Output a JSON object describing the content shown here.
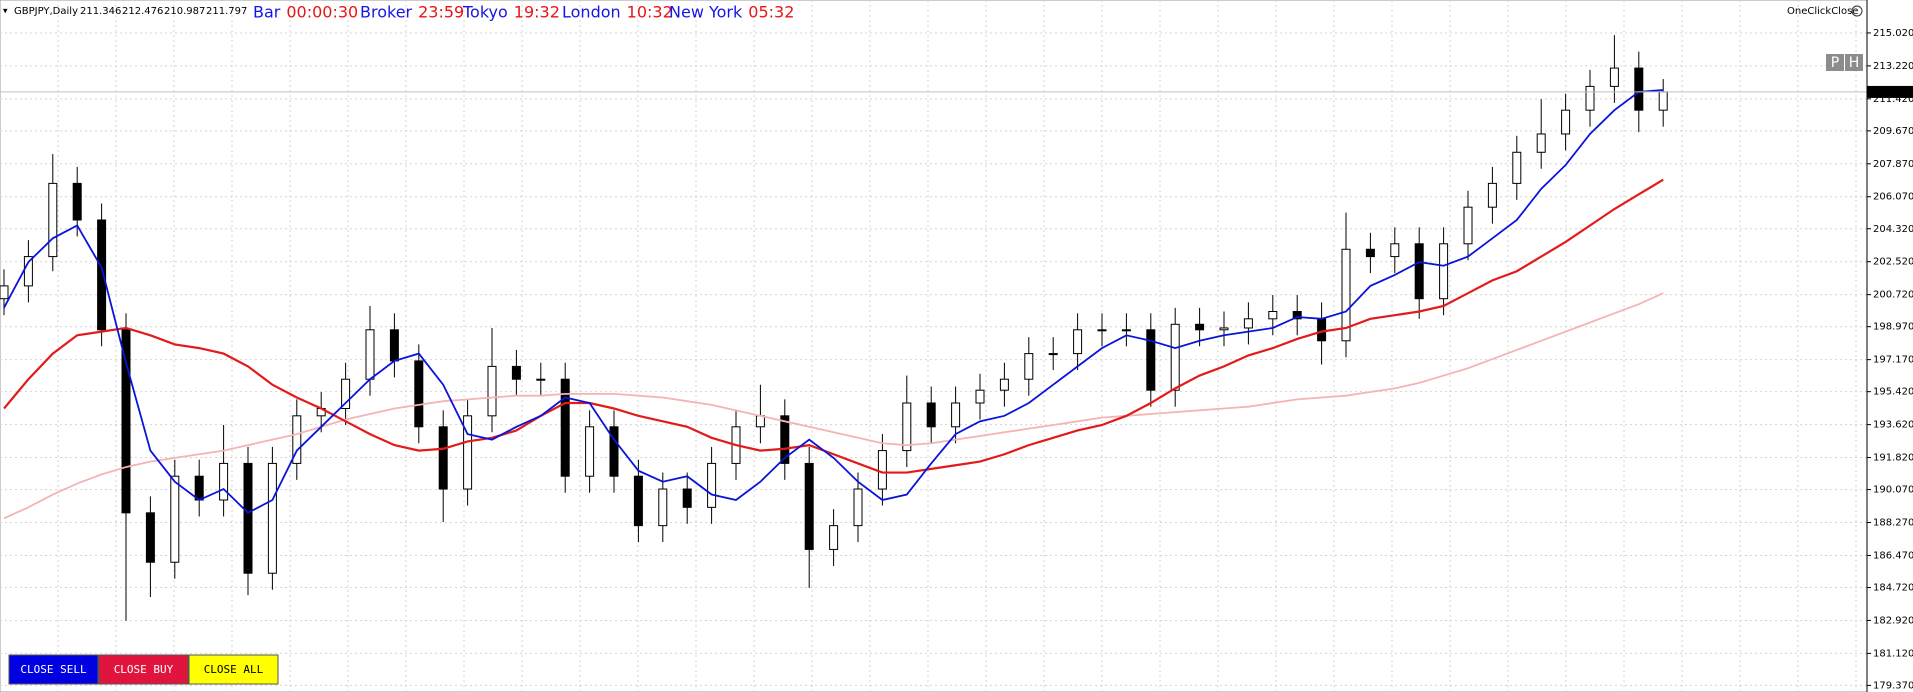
{
  "header": {
    "symbol": "GBPJPY,Daily",
    "ohlc": [
      211.346,
      212.476,
      210.987,
      211.797
    ]
  },
  "clocks": [
    {
      "label": "Bar",
      "time": "00:00:30"
    },
    {
      "label": "Broker",
      "time": "23:59"
    },
    {
      "label": "Tokyo",
      "time": "19:32"
    },
    {
      "label": "London",
      "time": "10:32"
    },
    {
      "label": "New York",
      "time": "05:32"
    }
  ],
  "panel": {
    "title": "OneClickClose",
    "buttons": [
      "P",
      "H"
    ]
  },
  "actions": [
    "CLOSE SELL",
    "CLOSE BUY",
    "CLOSE ALL"
  ],
  "chart_data": {
    "type": "candlestick",
    "ylim": [
      179.01,
      216.82
    ],
    "yticks": [
      {
        "value": 215.02,
        "label": "215.020"
      },
      {
        "value": 213.22,
        "label": "213.220"
      },
      {
        "value": 211.42,
        "label": "211.420"
      },
      {
        "value": 209.67,
        "label": "209.670"
      },
      {
        "value": 207.87,
        "label": "207.870"
      },
      {
        "value": 206.07,
        "label": "206.070"
      },
      {
        "value": 204.32,
        "label": "204.320"
      },
      {
        "value": 202.52,
        "label": "202.520"
      },
      {
        "value": 200.72,
        "label": "200.720"
      },
      {
        "value": 198.97,
        "label": "198.970"
      },
      {
        "value": 197.17,
        "label": "197.170"
      },
      {
        "value": 195.42,
        "label": "195.420"
      },
      {
        "value": 193.62,
        "label": "193.620"
      },
      {
        "value": 191.82,
        "label": "191.820"
      },
      {
        "value": 190.07,
        "label": "190.070"
      },
      {
        "value": 188.27,
        "label": "188.270"
      },
      {
        "value": 186.47,
        "label": "186.470"
      },
      {
        "value": 184.72,
        "label": "184.720"
      },
      {
        "value": 182.92,
        "label": "182.920"
      },
      {
        "value": 181.12,
        "label": "181.120"
      },
      {
        "value": 179.37,
        "label": "179.370"
      }
    ],
    "grid": true,
    "current_price": 211.797,
    "candles": {
      "open": [
        200.5,
        201.2,
        202.8,
        206.8,
        204.8,
        198.8,
        188.8,
        186.1,
        190.8,
        189.5,
        191.5,
        185.5,
        191.5,
        194.1,
        194.5,
        196.1,
        198.8,
        197.1,
        193.5,
        190.1,
        194.1,
        196.8,
        196.1,
        196.1,
        190.8,
        193.5,
        190.8,
        188.1,
        190.1,
        189.1,
        191.5,
        193.5,
        194.1,
        191.5,
        186.8,
        188.1,
        190.1,
        192.2,
        194.8,
        193.5,
        194.8,
        195.5,
        196.1,
        197.5,
        197.5,
        198.8,
        198.8,
        198.8,
        195.5,
        199.1,
        198.8,
        198.9,
        199.4,
        199.8,
        199.4,
        198.2,
        203.2,
        202.8,
        203.5,
        200.5,
        203.5,
        205.5,
        206.8,
        208.5,
        209.5,
        210.8,
        212.1,
        213.1,
        210.8
      ],
      "high": [
        202.1,
        203.7,
        208.4,
        207.7,
        205.7,
        199.7,
        189.7,
        191.7,
        191.7,
        193.6,
        192.4,
        192.4,
        195.0,
        195.4,
        197.0,
        200.1,
        199.7,
        198.0,
        194.4,
        195.0,
        198.9,
        197.7,
        197.0,
        197.0,
        194.4,
        194.4,
        191.7,
        191.0,
        191.0,
        192.4,
        194.4,
        195.8,
        195.0,
        192.4,
        189.0,
        191.0,
        193.1,
        196.3,
        195.7,
        195.7,
        196.4,
        197.0,
        198.4,
        198.4,
        199.7,
        199.7,
        199.7,
        199.7,
        200.0,
        200.0,
        199.8,
        200.3,
        200.7,
        200.7,
        200.3,
        205.2,
        204.1,
        204.4,
        204.4,
        204.4,
        206.4,
        207.7,
        209.4,
        211.4,
        211.7,
        213.0,
        214.9,
        214.0,
        212.5
      ],
      "low": [
        199.6,
        200.3,
        202.0,
        203.9,
        197.9,
        182.9,
        184.2,
        185.2,
        188.6,
        188.6,
        184.3,
        184.6,
        190.6,
        193.2,
        193.6,
        195.2,
        196.2,
        192.6,
        188.3,
        189.2,
        193.2,
        195.2,
        195.2,
        189.9,
        189.9,
        189.9,
        187.2,
        187.2,
        188.2,
        188.2,
        190.6,
        192.6,
        190.6,
        184.7,
        185.9,
        187.2,
        189.2,
        191.3,
        192.6,
        192.6,
        193.9,
        194.6,
        195.2,
        196.6,
        196.6,
        197.9,
        197.9,
        194.6,
        194.6,
        197.9,
        197.9,
        198.0,
        198.5,
        198.5,
        196.9,
        197.3,
        201.9,
        201.9,
        199.4,
        199.6,
        202.6,
        204.6,
        205.9,
        207.6,
        208.6,
        209.9,
        211.2,
        209.6,
        209.9
      ],
      "close": [
        201.2,
        202.8,
        206.8,
        204.8,
        198.8,
        188.8,
        186.1,
        190.8,
        189.5,
        191.5,
        185.5,
        191.5,
        194.1,
        194.5,
        196.1,
        198.8,
        197.1,
        193.5,
        190.1,
        194.1,
        196.8,
        196.1,
        196.1,
        190.8,
        193.5,
        190.8,
        188.1,
        190.1,
        189.1,
        191.5,
        193.5,
        194.1,
        191.5,
        186.8,
        188.1,
        190.1,
        192.2,
        194.8,
        193.5,
        194.8,
        195.5,
        196.1,
        197.5,
        197.5,
        198.8,
        198.8,
        198.8,
        195.5,
        199.1,
        198.8,
        198.9,
        199.4,
        199.8,
        199.4,
        198.2,
        203.2,
        202.8,
        203.5,
        200.5,
        203.5,
        205.5,
        206.8,
        208.5,
        209.5,
        210.8,
        212.1,
        213.1,
        210.8,
        211.8
      ]
    },
    "series": [
      {
        "color": "#f4b4b4",
        "values": [
          188.5,
          189.1,
          189.8,
          190.4,
          190.9,
          191.3,
          191.6,
          191.8,
          192.0,
          192.2,
          192.5,
          192.8,
          193.1,
          193.5,
          193.9,
          194.2,
          194.5,
          194.7,
          194.9,
          195.0,
          195.1,
          195.2,
          195.2,
          195.3,
          195.3,
          195.3,
          195.2,
          195.1,
          194.9,
          194.7,
          194.4,
          194.1,
          193.8,
          193.5,
          193.2,
          192.9,
          192.6,
          192.5,
          192.6,
          192.8,
          193.0,
          193.2,
          193.4,
          193.6,
          193.8,
          194.0,
          194.1,
          194.2,
          194.3,
          194.4,
          194.5,
          194.6,
          194.8,
          195.0,
          195.1,
          195.2,
          195.4,
          195.6,
          195.9,
          196.3,
          196.7,
          197.2,
          197.7,
          198.2,
          198.7,
          199.2,
          199.7,
          200.2,
          200.8
        ]
      },
      {
        "color": "#e31a1a",
        "values": [
          194.5,
          196.1,
          197.5,
          198.5,
          198.7,
          198.9,
          198.5,
          198.0,
          197.8,
          197.5,
          196.8,
          195.8,
          195.1,
          194.5,
          193.8,
          193.1,
          192.5,
          192.2,
          192.3,
          192.7,
          192.9,
          193.3,
          194.1,
          194.8,
          194.8,
          194.5,
          194.1,
          193.8,
          193.5,
          192.9,
          192.5,
          192.2,
          192.3,
          192.5,
          192.0,
          191.5,
          191.0,
          191.0,
          191.2,
          191.4,
          191.6,
          192.0,
          192.5,
          192.9,
          193.3,
          193.6,
          194.1,
          194.8,
          195.6,
          196.3,
          196.8,
          197.4,
          197.8,
          198.3,
          198.7,
          198.9,
          199.4,
          199.6,
          199.8,
          200.1,
          200.8,
          201.5,
          202.0,
          202.8,
          203.6,
          204.5,
          205.4,
          206.2,
          207.0
        ]
      },
      {
        "color": "#0a14d8",
        "values": [
          200.0,
          202.5,
          203.8,
          204.5,
          202.2,
          197.0,
          192.2,
          190.5,
          189.5,
          190.1,
          188.8,
          189.5,
          192.2,
          193.5,
          194.8,
          196.1,
          197.1,
          197.5,
          195.8,
          193.1,
          192.8,
          193.5,
          194.1,
          195.1,
          194.8,
          192.8,
          191.1,
          190.5,
          190.8,
          189.8,
          189.5,
          190.5,
          191.8,
          192.8,
          191.8,
          190.5,
          189.5,
          189.8,
          191.5,
          193.1,
          193.8,
          194.1,
          194.8,
          195.8,
          196.8,
          197.8,
          198.5,
          198.2,
          197.8,
          198.2,
          198.5,
          198.7,
          198.9,
          199.5,
          199.4,
          199.8,
          201.2,
          201.8,
          202.5,
          202.3,
          202.8,
          203.8,
          204.8,
          206.5,
          207.8,
          209.5,
          210.8,
          211.8,
          211.9
        ]
      }
    ]
  }
}
